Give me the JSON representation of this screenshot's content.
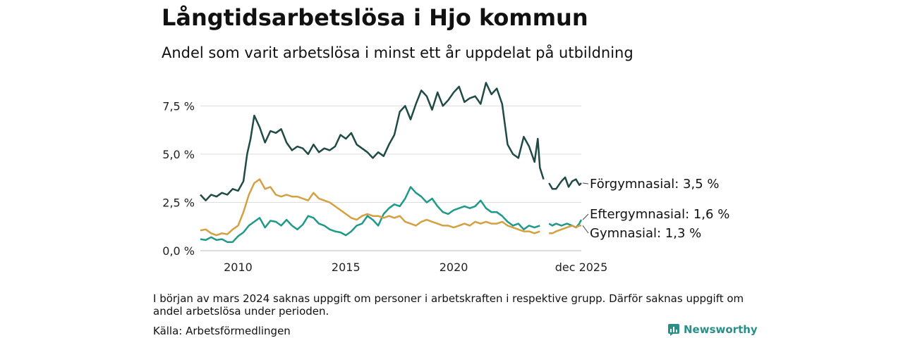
{
  "title": "Långtidsarbetslösa i Hjo kommun",
  "subtitle": "Andel som varit arbetslösa i minst ett år uppdelat på utbildning",
  "note": "I början av mars 2024 saknas uppgift om personer i arbetskraften i respektive grupp. Därför saknas uppgift om andel arbetslösa under perioden.",
  "source": "Källa: Arbetsförmedlingen",
  "brand": "Newsworthy",
  "chart_data": {
    "type": "line",
    "title": "Långtidsarbetslösa i Hjo kommun",
    "subtitle": "Andel som varit arbetslösa i minst ett år uppdelat på utbildning",
    "xlabel": "",
    "ylabel": "",
    "x_range": [
      2008.25,
      2025.92
    ],
    "ylim": [
      0,
      8.9
    ],
    "y_ticks": [
      0,
      2.5,
      5.0,
      7.5
    ],
    "y_tick_labels": [
      "0,0 %",
      "2,5 %",
      "5,0 %",
      "7,5 %"
    ],
    "x_ticks": [
      2010,
      2015,
      2020,
      2025.92
    ],
    "x_tick_labels": [
      "2010",
      "2015",
      "2020",
      "dec 2025"
    ],
    "grid": true,
    "series": [
      {
        "name": "Förgymnasial",
        "end_label": "Förgymnasial: 3,5 %",
        "color": "#1f4a45",
        "points": [
          [
            [
              2008.25,
              2.9
            ],
            [
              2008.5,
              2.6
            ],
            [
              2008.75,
              2.9
            ],
            [
              2009.0,
              2.8
            ],
            [
              2009.25,
              3.0
            ],
            [
              2009.5,
              2.9
            ],
            [
              2009.75,
              3.2
            ],
            [
              2010.0,
              3.1
            ],
            [
              2010.25,
              3.6
            ],
            [
              2010.42,
              5.0
            ],
            [
              2010.58,
              5.8
            ],
            [
              2010.75,
              7.0
            ],
            [
              2011.0,
              6.4
            ],
            [
              2011.25,
              5.6
            ],
            [
              2011.5,
              6.2
            ],
            [
              2011.75,
              6.1
            ],
            [
              2012.0,
              6.3
            ],
            [
              2012.25,
              5.6
            ],
            [
              2012.5,
              5.2
            ],
            [
              2012.75,
              5.4
            ],
            [
              2013.0,
              5.3
            ],
            [
              2013.25,
              5.0
            ],
            [
              2013.5,
              5.5
            ],
            [
              2013.75,
              5.1
            ],
            [
              2014.0,
              5.3
            ],
            [
              2014.25,
              5.2
            ],
            [
              2014.5,
              5.4
            ],
            [
              2014.75,
              6.0
            ],
            [
              2015.0,
              5.8
            ],
            [
              2015.25,
              6.1
            ],
            [
              2015.5,
              5.5
            ],
            [
              2015.75,
              5.3
            ],
            [
              2016.0,
              5.1
            ],
            [
              2016.25,
              4.8
            ],
            [
              2016.5,
              5.1
            ],
            [
              2016.75,
              4.9
            ],
            [
              2017.0,
              5.5
            ],
            [
              2017.25,
              6.0
            ],
            [
              2017.5,
              7.2
            ],
            [
              2017.75,
              7.5
            ],
            [
              2018.0,
              6.8
            ],
            [
              2018.25,
              7.6
            ],
            [
              2018.5,
              8.3
            ],
            [
              2018.75,
              8.0
            ],
            [
              2019.0,
              7.3
            ],
            [
              2019.25,
              8.2
            ],
            [
              2019.5,
              7.5
            ],
            [
              2019.75,
              7.8
            ],
            [
              2020.0,
              8.2
            ],
            [
              2020.25,
              8.5
            ],
            [
              2020.5,
              7.7
            ],
            [
              2020.75,
              7.9
            ],
            [
              2021.0,
              8.0
            ],
            [
              2021.25,
              7.6
            ],
            [
              2021.5,
              8.7
            ],
            [
              2021.75,
              8.1
            ],
            [
              2022.0,
              8.4
            ],
            [
              2022.25,
              7.6
            ],
            [
              2022.5,
              5.5
            ],
            [
              2022.75,
              5.0
            ],
            [
              2023.0,
              4.8
            ],
            [
              2023.25,
              5.9
            ],
            [
              2023.5,
              5.4
            ],
            [
              2023.75,
              4.6
            ],
            [
              2023.9,
              5.8
            ],
            [
              2024.0,
              4.3
            ],
            [
              2024.17,
              3.7
            ]
          ],
          [
            [
              2024.42,
              3.5
            ],
            [
              2024.58,
              3.2
            ],
            [
              2024.75,
              3.2
            ],
            [
              2025.0,
              3.6
            ],
            [
              2025.17,
              3.8
            ],
            [
              2025.33,
              3.3
            ],
            [
              2025.5,
              3.6
            ],
            [
              2025.67,
              3.7
            ],
            [
              2025.83,
              3.4
            ],
            [
              2025.92,
              3.5
            ]
          ]
        ]
      },
      {
        "name": "Eftergymnasial",
        "end_label": "Eftergymnasial: 1,6 %",
        "color": "#1f9a8a",
        "points": [
          [
            [
              2008.25,
              0.6
            ],
            [
              2008.5,
              0.55
            ],
            [
              2008.75,
              0.7
            ],
            [
              2009.0,
              0.55
            ],
            [
              2009.25,
              0.6
            ],
            [
              2009.5,
              0.45
            ],
            [
              2009.75,
              0.45
            ],
            [
              2010.0,
              0.75
            ],
            [
              2010.25,
              0.95
            ],
            [
              2010.5,
              1.3
            ],
            [
              2010.75,
              1.5
            ],
            [
              2011.0,
              1.7
            ],
            [
              2011.25,
              1.2
            ],
            [
              2011.5,
              1.55
            ],
            [
              2011.75,
              1.5
            ],
            [
              2012.0,
              1.3
            ],
            [
              2012.25,
              1.6
            ],
            [
              2012.5,
              1.3
            ],
            [
              2012.75,
              1.1
            ],
            [
              2013.0,
              1.35
            ],
            [
              2013.25,
              1.8
            ],
            [
              2013.5,
              1.7
            ],
            [
              2013.75,
              1.4
            ],
            [
              2014.0,
              1.3
            ],
            [
              2014.25,
              1.1
            ],
            [
              2014.5,
              1.0
            ],
            [
              2014.75,
              0.95
            ],
            [
              2015.0,
              0.8
            ],
            [
              2015.25,
              1.0
            ],
            [
              2015.5,
              1.3
            ],
            [
              2015.75,
              1.4
            ],
            [
              2016.0,
              1.8
            ],
            [
              2016.25,
              1.6
            ],
            [
              2016.5,
              1.3
            ],
            [
              2016.75,
              1.9
            ],
            [
              2017.0,
              2.2
            ],
            [
              2017.25,
              2.4
            ],
            [
              2017.5,
              2.3
            ],
            [
              2017.75,
              2.7
            ],
            [
              2018.0,
              3.3
            ],
            [
              2018.25,
              3.0
            ],
            [
              2018.5,
              2.8
            ],
            [
              2018.75,
              2.5
            ],
            [
              2019.0,
              2.7
            ],
            [
              2019.25,
              2.3
            ],
            [
              2019.5,
              2.0
            ],
            [
              2019.75,
              1.9
            ],
            [
              2020.0,
              2.1
            ],
            [
              2020.25,
              2.2
            ],
            [
              2020.5,
              2.3
            ],
            [
              2020.75,
              2.2
            ],
            [
              2021.0,
              2.3
            ],
            [
              2021.25,
              2.6
            ],
            [
              2021.5,
              2.2
            ],
            [
              2021.75,
              2.0
            ],
            [
              2022.0,
              2.0
            ],
            [
              2022.25,
              1.8
            ],
            [
              2022.5,
              1.5
            ],
            [
              2022.75,
              1.3
            ],
            [
              2023.0,
              1.4
            ],
            [
              2023.25,
              1.1
            ],
            [
              2023.5,
              1.3
            ],
            [
              2023.75,
              1.2
            ],
            [
              2024.0,
              1.3
            ]
          ],
          [
            [
              2024.42,
              1.4
            ],
            [
              2024.58,
              1.3
            ],
            [
              2024.75,
              1.4
            ],
            [
              2025.0,
              1.3
            ],
            [
              2025.25,
              1.4
            ],
            [
              2025.5,
              1.3
            ],
            [
              2025.67,
              1.2
            ],
            [
              2025.83,
              1.4
            ],
            [
              2025.92,
              1.6
            ]
          ]
        ]
      },
      {
        "name": "Gymnasial",
        "end_label": "Gymnasial: 1,3 %",
        "color": "#d4a040",
        "points": [
          [
            [
              2008.25,
              1.05
            ],
            [
              2008.5,
              1.1
            ],
            [
              2008.75,
              0.9
            ],
            [
              2009.0,
              0.8
            ],
            [
              2009.25,
              0.9
            ],
            [
              2009.5,
              0.85
            ],
            [
              2009.75,
              1.1
            ],
            [
              2010.0,
              1.3
            ],
            [
              2010.25,
              2.0
            ],
            [
              2010.5,
              2.9
            ],
            [
              2010.75,
              3.5
            ],
            [
              2011.0,
              3.7
            ],
            [
              2011.25,
              3.2
            ],
            [
              2011.5,
              3.3
            ],
            [
              2011.75,
              2.9
            ],
            [
              2012.0,
              2.8
            ],
            [
              2012.25,
              2.9
            ],
            [
              2012.5,
              2.8
            ],
            [
              2012.75,
              2.8
            ],
            [
              2013.0,
              2.7
            ],
            [
              2013.25,
              2.6
            ],
            [
              2013.5,
              3.0
            ],
            [
              2013.75,
              2.7
            ],
            [
              2014.0,
              2.6
            ],
            [
              2014.25,
              2.5
            ],
            [
              2014.5,
              2.3
            ],
            [
              2014.75,
              2.1
            ],
            [
              2015.0,
              1.9
            ],
            [
              2015.25,
              1.7
            ],
            [
              2015.5,
              1.6
            ],
            [
              2015.75,
              1.8
            ],
            [
              2016.0,
              1.9
            ],
            [
              2016.25,
              1.8
            ],
            [
              2016.5,
              1.8
            ],
            [
              2016.75,
              1.7
            ],
            [
              2017.0,
              1.8
            ],
            [
              2017.25,
              1.7
            ],
            [
              2017.5,
              1.8
            ],
            [
              2017.75,
              1.5
            ],
            [
              2018.0,
              1.4
            ],
            [
              2018.25,
              1.3
            ],
            [
              2018.5,
              1.5
            ],
            [
              2018.75,
              1.6
            ],
            [
              2019.0,
              1.5
            ],
            [
              2019.25,
              1.4
            ],
            [
              2019.5,
              1.3
            ],
            [
              2019.75,
              1.3
            ],
            [
              2020.0,
              1.2
            ],
            [
              2020.25,
              1.3
            ],
            [
              2020.5,
              1.4
            ],
            [
              2020.75,
              1.3
            ],
            [
              2021.0,
              1.5
            ],
            [
              2021.25,
              1.4
            ],
            [
              2021.5,
              1.5
            ],
            [
              2021.75,
              1.4
            ],
            [
              2022.0,
              1.4
            ],
            [
              2022.25,
              1.5
            ],
            [
              2022.5,
              1.3
            ],
            [
              2022.75,
              1.2
            ],
            [
              2023.0,
              1.1
            ],
            [
              2023.25,
              1.0
            ],
            [
              2023.5,
              1.0
            ],
            [
              2023.75,
              0.9
            ],
            [
              2024.0,
              1.0
            ]
          ],
          [
            [
              2024.42,
              0.9
            ],
            [
              2024.58,
              0.9
            ],
            [
              2024.75,
              1.0
            ],
            [
              2025.0,
              1.1
            ],
            [
              2025.25,
              1.2
            ],
            [
              2025.5,
              1.3
            ],
            [
              2025.67,
              1.2
            ],
            [
              2025.83,
              1.3
            ],
            [
              2025.92,
              1.3
            ]
          ]
        ]
      }
    ]
  }
}
